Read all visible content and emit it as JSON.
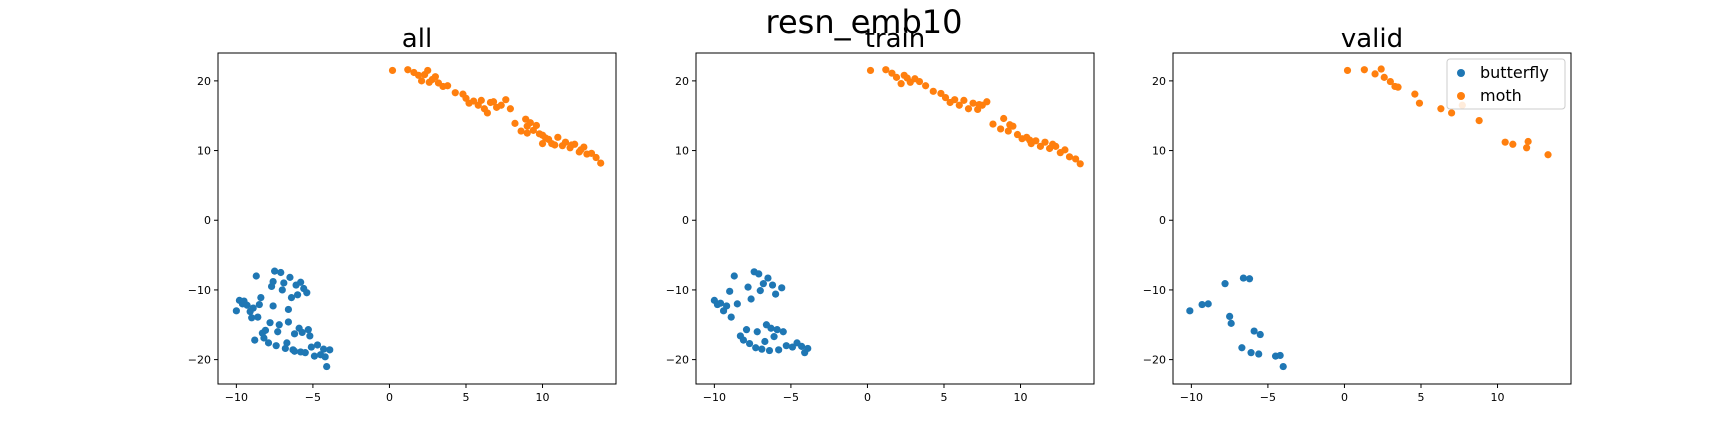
{
  "suptitle": "resn_emb10",
  "colors": {
    "butterfly": "#1f77b4",
    "moth": "#ff7f0e"
  },
  "chart_data": [
    {
      "type": "scatter",
      "title": "all",
      "xlabel": "",
      "ylabel": "",
      "xlim": [
        -11.2,
        14.8
      ],
      "ylim": [
        -23.5,
        24
      ],
      "xticks": [
        -10,
        -5,
        0,
        5,
        10
      ],
      "yticks": [
        -20,
        -10,
        0,
        10,
        20
      ],
      "grid": false,
      "legend": null,
      "series": [
        {
          "name": "butterfly",
          "points": [
            [
              -10.0,
              -13.0
            ],
            [
              -9.8,
              -11.5
            ],
            [
              -9.6,
              -12.0
            ],
            [
              -9.5,
              -11.6
            ],
            [
              -9.3,
              -12.2
            ],
            [
              -9.1,
              -13.1
            ],
            [
              -8.9,
              -12.6
            ],
            [
              -8.7,
              -8.0
            ],
            [
              -8.6,
              -13.9
            ],
            [
              -8.5,
              -12.1
            ],
            [
              -8.3,
              -16.2
            ],
            [
              -8.2,
              -16.9
            ],
            [
              -8.1,
              -15.8
            ],
            [
              -7.9,
              -17.6
            ],
            [
              -7.8,
              -14.7
            ],
            [
              -7.7,
              -9.5
            ],
            [
              -7.6,
              -12.3
            ],
            [
              -7.5,
              -7.3
            ],
            [
              -7.4,
              -18.0
            ],
            [
              -7.3,
              -16.0
            ],
            [
              -7.2,
              -15.0
            ],
            [
              -7.1,
              -7.5
            ],
            [
              -7.0,
              -10.0
            ],
            [
              -6.9,
              -9.0
            ],
            [
              -6.8,
              -18.4
            ],
            [
              -6.7,
              -17.6
            ],
            [
              -6.6,
              -14.6
            ],
            [
              -6.5,
              -8.2
            ],
            [
              -6.4,
              -11.1
            ],
            [
              -6.3,
              -18.6
            ],
            [
              -6.2,
              -16.3
            ],
            [
              -6.1,
              -9.3
            ],
            [
              -6.0,
              -10.7
            ],
            [
              -5.9,
              -15.5
            ],
            [
              -5.8,
              -18.9
            ],
            [
              -5.7,
              -16.1
            ],
            [
              -5.6,
              -9.8
            ],
            [
              -5.5,
              -19.0
            ],
            [
              -5.4,
              -10.4
            ],
            [
              -5.3,
              -15.7
            ],
            [
              -5.2,
              -16.6
            ],
            [
              -5.1,
              -18.2
            ],
            [
              -4.9,
              -19.5
            ],
            [
              -4.7,
              -17.9
            ],
            [
              -4.5,
              -19.3
            ],
            [
              -4.3,
              -18.5
            ],
            [
              -4.2,
              -19.6
            ],
            [
              -4.1,
              -21.0
            ],
            [
              -3.9,
              -18.6
            ],
            [
              -8.8,
              -17.2
            ],
            [
              -9.0,
              -14.0
            ],
            [
              -8.4,
              -11.1
            ],
            [
              -7.6,
              -8.8
            ],
            [
              -6.6,
              -12.8
            ],
            [
              -6.2,
              -18.8
            ],
            [
              -5.8,
              -8.9
            ]
          ]
        },
        {
          "name": "moth",
          "points": [
            [
              0.2,
              21.5
            ],
            [
              1.2,
              21.6
            ],
            [
              1.6,
              21.2
            ],
            [
              1.9,
              20.8
            ],
            [
              2.1,
              20.0
            ],
            [
              2.3,
              20.9
            ],
            [
              2.5,
              21.5
            ],
            [
              2.6,
              19.8
            ],
            [
              2.8,
              20.2
            ],
            [
              3.0,
              20.6
            ],
            [
              3.2,
              19.7
            ],
            [
              3.5,
              19.2
            ],
            [
              3.8,
              19.3
            ],
            [
              4.3,
              18.3
            ],
            [
              4.8,
              18.1
            ],
            [
              5.0,
              17.5
            ],
            [
              5.2,
              16.8
            ],
            [
              5.5,
              17.1
            ],
            [
              5.8,
              16.5
            ],
            [
              6.0,
              17.2
            ],
            [
              6.2,
              16.0
            ],
            [
              6.4,
              15.4
            ],
            [
              6.6,
              16.9
            ],
            [
              6.8,
              17.0
            ],
            [
              7.0,
              16.2
            ],
            [
              7.3,
              16.5
            ],
            [
              7.6,
              17.3
            ],
            [
              7.9,
              16.0
            ],
            [
              8.2,
              13.9
            ],
            [
              8.6,
              12.8
            ],
            [
              8.9,
              14.5
            ],
            [
              9.0,
              13.5
            ],
            [
              9.2,
              14.0
            ],
            [
              9.4,
              12.9
            ],
            [
              9.6,
              13.6
            ],
            [
              9.8,
              12.4
            ],
            [
              10.0,
              12.2
            ],
            [
              10.2,
              11.8
            ],
            [
              10.4,
              11.6
            ],
            [
              10.6,
              11.0
            ],
            [
              10.8,
              10.8
            ],
            [
              11.0,
              11.9
            ],
            [
              11.3,
              10.7
            ],
            [
              11.5,
              11.2
            ],
            [
              11.8,
              10.4
            ],
            [
              12.1,
              10.9
            ],
            [
              12.4,
              9.8
            ],
            [
              12.7,
              10.5
            ],
            [
              12.9,
              9.5
            ],
            [
              13.2,
              9.6
            ],
            [
              13.5,
              9.0
            ],
            [
              13.8,
              8.2
            ],
            [
              9.0,
              12.5
            ],
            [
              10.0,
              11.0
            ],
            [
              11.9,
              10.8
            ],
            [
              12.5,
              10.1
            ]
          ]
        }
      ]
    },
    {
      "type": "scatter",
      "title": "train",
      "xlabel": "",
      "ylabel": "",
      "xlim": [
        -11.2,
        14.8
      ],
      "ylim": [
        -23.5,
        24
      ],
      "xticks": [
        -10,
        -5,
        0,
        5,
        10
      ],
      "yticks": [
        -20,
        -10,
        0,
        10,
        20
      ],
      "grid": false,
      "legend": null,
      "series": [
        {
          "name": "butterfly",
          "points": [
            [
              -10.0,
              -11.5
            ],
            [
              -9.8,
              -12.1
            ],
            [
              -9.6,
              -11.9
            ],
            [
              -9.4,
              -13.0
            ],
            [
              -9.2,
              -12.3
            ],
            [
              -9.0,
              -10.2
            ],
            [
              -8.9,
              -13.9
            ],
            [
              -8.7,
              -8.0
            ],
            [
              -8.5,
              -12.0
            ],
            [
              -8.3,
              -16.6
            ],
            [
              -8.1,
              -17.2
            ],
            [
              -7.9,
              -15.7
            ],
            [
              -7.8,
              -9.6
            ],
            [
              -7.7,
              -17.7
            ],
            [
              -7.6,
              -11.3
            ],
            [
              -7.4,
              -7.4
            ],
            [
              -7.3,
              -18.3
            ],
            [
              -7.2,
              -16.0
            ],
            [
              -7.1,
              -7.7
            ],
            [
              -7.0,
              -10.1
            ],
            [
              -6.9,
              -18.5
            ],
            [
              -6.8,
              -9.1
            ],
            [
              -6.7,
              -17.4
            ],
            [
              -6.6,
              -15.0
            ],
            [
              -6.5,
              -8.3
            ],
            [
              -6.4,
              -18.7
            ],
            [
              -6.3,
              -15.5
            ],
            [
              -6.2,
              -9.3
            ],
            [
              -6.0,
              -10.6
            ],
            [
              -5.9,
              -15.7
            ],
            [
              -5.8,
              -18.6
            ],
            [
              -5.6,
              -9.7
            ],
            [
              -5.5,
              -16.0
            ],
            [
              -5.3,
              -18.0
            ],
            [
              -4.9,
              -18.2
            ],
            [
              -4.6,
              -17.6
            ],
            [
              -4.3,
              -18.1
            ],
            [
              -4.1,
              -19.0
            ],
            [
              -3.9,
              -18.4
            ],
            [
              -6.1,
              -16.7
            ]
          ]
        },
        {
          "name": "moth",
          "points": [
            [
              0.2,
              21.5
            ],
            [
              1.2,
              21.6
            ],
            [
              1.6,
              21.1
            ],
            [
              1.9,
              20.5
            ],
            [
              2.2,
              19.6
            ],
            [
              2.4,
              20.8
            ],
            [
              2.6,
              20.4
            ],
            [
              2.8,
              19.8
            ],
            [
              3.1,
              20.3
            ],
            [
              3.4,
              19.9
            ],
            [
              3.8,
              19.3
            ],
            [
              4.3,
              18.5
            ],
            [
              4.8,
              18.2
            ],
            [
              5.1,
              17.6
            ],
            [
              5.4,
              16.9
            ],
            [
              5.7,
              17.3
            ],
            [
              6.0,
              16.5
            ],
            [
              6.3,
              17.2
            ],
            [
              6.6,
              16.0
            ],
            [
              6.9,
              16.8
            ],
            [
              7.2,
              15.9
            ],
            [
              7.5,
              16.5
            ],
            [
              7.8,
              17.0
            ],
            [
              8.2,
              13.8
            ],
            [
              8.7,
              13.1
            ],
            [
              8.9,
              14.6
            ],
            [
              9.2,
              12.8
            ],
            [
              9.5,
              13.5
            ],
            [
              9.8,
              12.3
            ],
            [
              10.1,
              11.7
            ],
            [
              10.4,
              11.9
            ],
            [
              10.7,
              11.0
            ],
            [
              11.0,
              11.4
            ],
            [
              11.3,
              10.6
            ],
            [
              11.6,
              11.2
            ],
            [
              11.9,
              10.3
            ],
            [
              12.3,
              10.6
            ],
            [
              12.6,
              9.7
            ],
            [
              12.9,
              10.1
            ],
            [
              13.2,
              9.1
            ],
            [
              13.6,
              8.8
            ],
            [
              13.9,
              8.1
            ],
            [
              9.3,
              13.7
            ],
            [
              10.6,
              11.5
            ],
            [
              12.1,
              10.9
            ],
            [
              7.3,
              16.6
            ]
          ]
        }
      ]
    },
    {
      "type": "scatter",
      "title": "valid",
      "xlabel": "",
      "ylabel": "",
      "xlim": [
        -11.2,
        14.8
      ],
      "ylim": [
        -23.5,
        24
      ],
      "xticks": [
        -10,
        -5,
        0,
        5,
        10
      ],
      "yticks": [
        -20,
        -10,
        0,
        10,
        20
      ],
      "grid": false,
      "legend": "top-right",
      "series": [
        {
          "name": "butterfly",
          "points": [
            [
              -10.1,
              -13.0
            ],
            [
              -9.3,
              -12.1
            ],
            [
              -8.9,
              -12.0
            ],
            [
              -7.8,
              -9.1
            ],
            [
              -7.5,
              -13.8
            ],
            [
              -7.4,
              -14.8
            ],
            [
              -6.6,
              -8.3
            ],
            [
              -6.7,
              -18.3
            ],
            [
              -6.2,
              -8.4
            ],
            [
              -6.1,
              -19.0
            ],
            [
              -5.9,
              -15.9
            ],
            [
              -5.6,
              -19.2
            ],
            [
              -5.5,
              -16.4
            ],
            [
              -4.5,
              -19.5
            ],
            [
              -4.2,
              -19.4
            ],
            [
              -4.0,
              -21.0
            ]
          ]
        },
        {
          "name": "moth",
          "points": [
            [
              0.2,
              21.5
            ],
            [
              1.3,
              21.6
            ],
            [
              2.0,
              21.0
            ],
            [
              2.4,
              21.7
            ],
            [
              2.6,
              20.5
            ],
            [
              3.0,
              19.9
            ],
            [
              3.3,
              19.2
            ],
            [
              3.5,
              19.1
            ],
            [
              4.6,
              18.1
            ],
            [
              4.9,
              16.8
            ],
            [
              6.3,
              16.0
            ],
            [
              7.0,
              15.4
            ],
            [
              7.7,
              16.5
            ],
            [
              8.8,
              14.3
            ],
            [
              10.5,
              11.2
            ],
            [
              11.0,
              10.9
            ],
            [
              12.0,
              11.3
            ],
            [
              11.9,
              10.4
            ],
            [
              13.3,
              9.4
            ]
          ]
        }
      ]
    }
  ]
}
